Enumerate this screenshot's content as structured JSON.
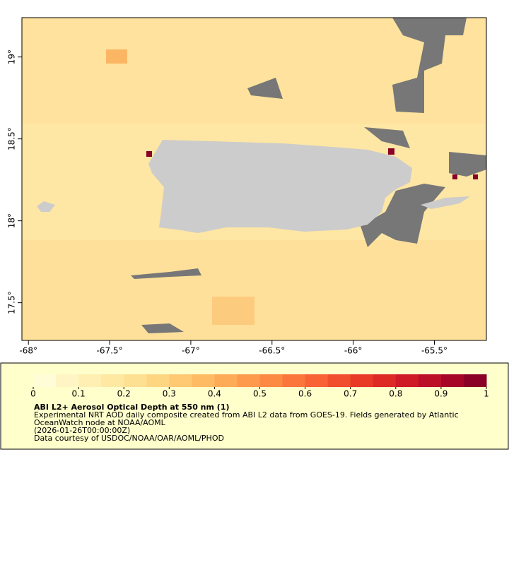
{
  "chart_data": {
    "type": "map",
    "xlim": [
      -68.04,
      -65.18
    ],
    "ylim": [
      17.27,
      19.24
    ],
    "xticks": [
      {
        "value": -68,
        "label": "-68°"
      },
      {
        "value": -67.5,
        "label": "-67.5°"
      },
      {
        "value": -67,
        "label": "-67°"
      },
      {
        "value": -66.5,
        "label": "-66.5°"
      },
      {
        "value": -66,
        "label": "-66°"
      },
      {
        "value": -65.5,
        "label": "-65.5°"
      }
    ],
    "yticks": [
      {
        "value": 17.5,
        "label": "17.5°"
      },
      {
        "value": 18,
        "label": "18°"
      },
      {
        "value": 18.5,
        "label": "18.5°"
      },
      {
        "value": 19,
        "label": "19°"
      }
    ],
    "colorbar": {
      "lim": [
        0,
        1
      ],
      "ticks": [
        0,
        0.1,
        0.2,
        0.3,
        0.4,
        0.5,
        0.6,
        0.7,
        0.8,
        0.9,
        1
      ],
      "colors": [
        "#fffcd8",
        "#fff5c4",
        "#ffefb2",
        "#fee8a2",
        "#fee092",
        "#fed682",
        "#fec972",
        "#febb64",
        "#fdab57",
        "#fd9a4c",
        "#fc8a43",
        "#fb763b",
        "#f86234",
        "#f14e2d",
        "#e83a27",
        "#dd2a24",
        "#ce1b26",
        "#bc0f28",
        "#a60528",
        "#8a0026"
      ]
    },
    "title": "ABI L2+ Aerosol Optical Depth at 550 nm (1)",
    "description": [
      "Experimental NRT AOD daily composite created from ABI L2 data from GOES-19. Fields generated by Atlantic",
      "OceanWatch node at NOAA/AOML",
      "(2026-01-26T00:00:00Z)",
      "Data courtesy of USDOC/NOAA/OAR/AOML/PHOD"
    ]
  }
}
